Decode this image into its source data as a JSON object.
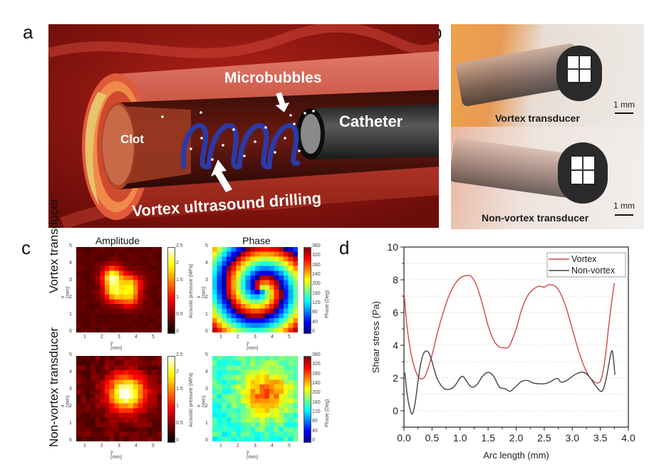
{
  "figure": {
    "panel_labels": [
      "a",
      "b",
      "c",
      "d"
    ],
    "panel_a": {
      "labels": {
        "microbubbles": "Microbubbles",
        "catheter": "Catheter",
        "clot": "Clot",
        "drilling": "Vortex ultrasound drilling"
      },
      "colors": {
        "vessel": "#c9362a",
        "helix": "#2b3aa8",
        "catheter": "#3a3a3a",
        "plaque": "#e7c36a"
      }
    },
    "panel_b": {
      "photos": [
        {
          "caption": "Vortex transducer",
          "scale_label": "1 mm"
        },
        {
          "caption": "Non-vortex transducer",
          "scale_label": "1 mm"
        }
      ]
    },
    "panel_c": {
      "column_titles": [
        "Amplitude",
        "Phase"
      ],
      "row_labels": [
        "Vortex transducer",
        "Non-vortex transducer"
      ],
      "x_axis_label": "y (mm)",
      "y_axis_label": "x (mm)",
      "axis_ticks": [
        "0",
        "1",
        "2",
        "3",
        "4",
        "5"
      ],
      "x_ticks": [
        "1",
        "2",
        "3",
        "4",
        "5"
      ],
      "amplitude_colorbar": {
        "label": "Acoustic pressure (MPa)",
        "ticks": [
          "0",
          "0.5",
          "1",
          "1.5",
          "2",
          "2.5"
        ],
        "colormap": "hot"
      },
      "phase_colorbar": {
        "label": "Phase (Deg)",
        "ticks": [
          "0",
          "40",
          "80",
          "120",
          "160",
          "200",
          "240",
          "280",
          "320",
          "360"
        ],
        "colormap": "jet"
      }
    }
  },
  "chart_data": {
    "type": "line",
    "title": "",
    "xlabel": "Arc length (mm)",
    "ylabel": "Shear stress (Pa)",
    "xlim": [
      0,
      4.0
    ],
    "ylim": [
      -1,
      10
    ],
    "x_ticks": [
      "0.0",
      "0.5",
      "1.0",
      "1.5",
      "2.0",
      "2.5",
      "3.0",
      "3.5",
      "4.0"
    ],
    "y_ticks": [
      "0",
      "2",
      "4",
      "6",
      "8",
      "10"
    ],
    "grid": true,
    "legend_position": "top-right",
    "series": [
      {
        "name": "Vortex",
        "color": "#d04848",
        "x": [
          0.0,
          0.05,
          0.1,
          0.15,
          0.2,
          0.25,
          0.3,
          0.35,
          0.4,
          0.5,
          0.6,
          0.7,
          0.8,
          0.9,
          1.0,
          1.1,
          1.2,
          1.3,
          1.4,
          1.5,
          1.6,
          1.7,
          1.8,
          1.85,
          1.9,
          2.0,
          2.1,
          2.2,
          2.3,
          2.4,
          2.5,
          2.55,
          2.6,
          2.7,
          2.8,
          2.9,
          3.0,
          3.1,
          3.2,
          3.3,
          3.4,
          3.45,
          3.5,
          3.55,
          3.6,
          3.65,
          3.7,
          3.75
        ],
        "y": [
          7.3,
          5.3,
          4.0,
          3.1,
          2.5,
          2.1,
          1.95,
          2.0,
          2.3,
          3.4,
          4.8,
          6.0,
          7.0,
          7.7,
          8.1,
          8.25,
          8.2,
          7.6,
          6.5,
          5.2,
          4.3,
          3.9,
          3.85,
          3.85,
          4.1,
          5.0,
          6.2,
          7.0,
          7.4,
          7.6,
          7.55,
          7.65,
          7.7,
          7.6,
          7.1,
          6.2,
          5.0,
          3.8,
          2.8,
          2.1,
          1.75,
          1.7,
          1.8,
          2.4,
          3.6,
          5.2,
          6.6,
          7.8
        ]
      },
      {
        "name": "Non-vortex",
        "color": "#444444",
        "x": [
          0.0,
          0.02,
          0.05,
          0.1,
          0.15,
          0.2,
          0.25,
          0.3,
          0.35,
          0.4,
          0.45,
          0.5,
          0.55,
          0.6,
          0.7,
          0.8,
          0.9,
          1.0,
          1.05,
          1.1,
          1.2,
          1.3,
          1.4,
          1.5,
          1.6,
          1.7,
          1.8,
          1.85,
          1.9,
          2.0,
          2.1,
          2.2,
          2.3,
          2.4,
          2.5,
          2.6,
          2.7,
          2.75,
          2.8,
          2.9,
          3.0,
          3.1,
          3.2,
          3.3,
          3.4,
          3.5,
          3.55,
          3.6,
          3.65,
          3.7,
          3.73,
          3.76
        ],
        "y": [
          2.3,
          2.2,
          1.2,
          0.2,
          -0.2,
          0.5,
          1.8,
          2.9,
          3.5,
          3.65,
          3.5,
          3.0,
          2.4,
          1.9,
          1.4,
          1.3,
          1.5,
          2.0,
          2.1,
          1.9,
          1.45,
          1.6,
          2.1,
          2.35,
          2.1,
          1.45,
          1.35,
          1.25,
          1.2,
          1.5,
          1.8,
          1.85,
          1.7,
          1.65,
          1.65,
          1.75,
          1.95,
          1.95,
          1.75,
          1.85,
          2.1,
          2.3,
          2.35,
          2.1,
          1.6,
          1.2,
          1.3,
          1.9,
          2.8,
          3.65,
          3.3,
          2.2
        ]
      }
    ]
  }
}
